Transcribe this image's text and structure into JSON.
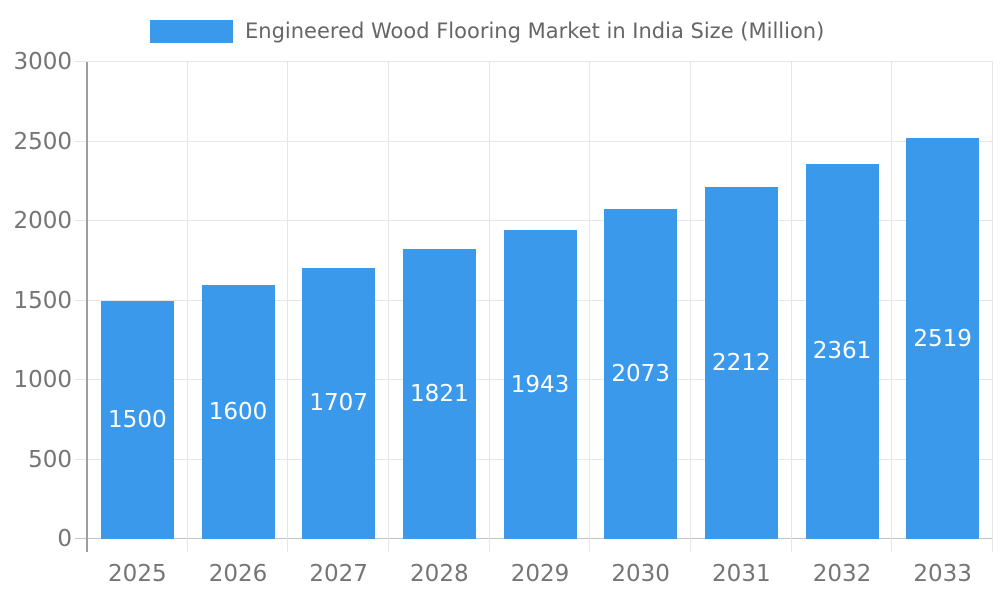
{
  "chart_data": {
    "type": "bar",
    "title": "Engineered Wood Flooring Market in India Size (Million)",
    "categories": [
      "2025",
      "2026",
      "2027",
      "2028",
      "2029",
      "2030",
      "2031",
      "2032",
      "2033"
    ],
    "values": [
      1500,
      1600,
      1707,
      1821,
      1943,
      2073,
      2212,
      2361,
      2519
    ],
    "xlabel": "",
    "ylabel": "",
    "ylim": [
      0,
      3000
    ],
    "yticks": [
      0,
      500,
      1000,
      1500,
      2000,
      2500,
      3000
    ],
    "grid": true,
    "legend_position": "top",
    "value_label_position": "inside-center",
    "colors": {
      "bar": "#3B99EC",
      "gridline": "#E6E6E6",
      "zero_line": "#C4C4C4",
      "axis_line": "#9E9E9E",
      "tick_label": "#757575",
      "legend_text": "#666666",
      "value_label": "#FFFFFF",
      "background": "#FFFFFF"
    }
  }
}
